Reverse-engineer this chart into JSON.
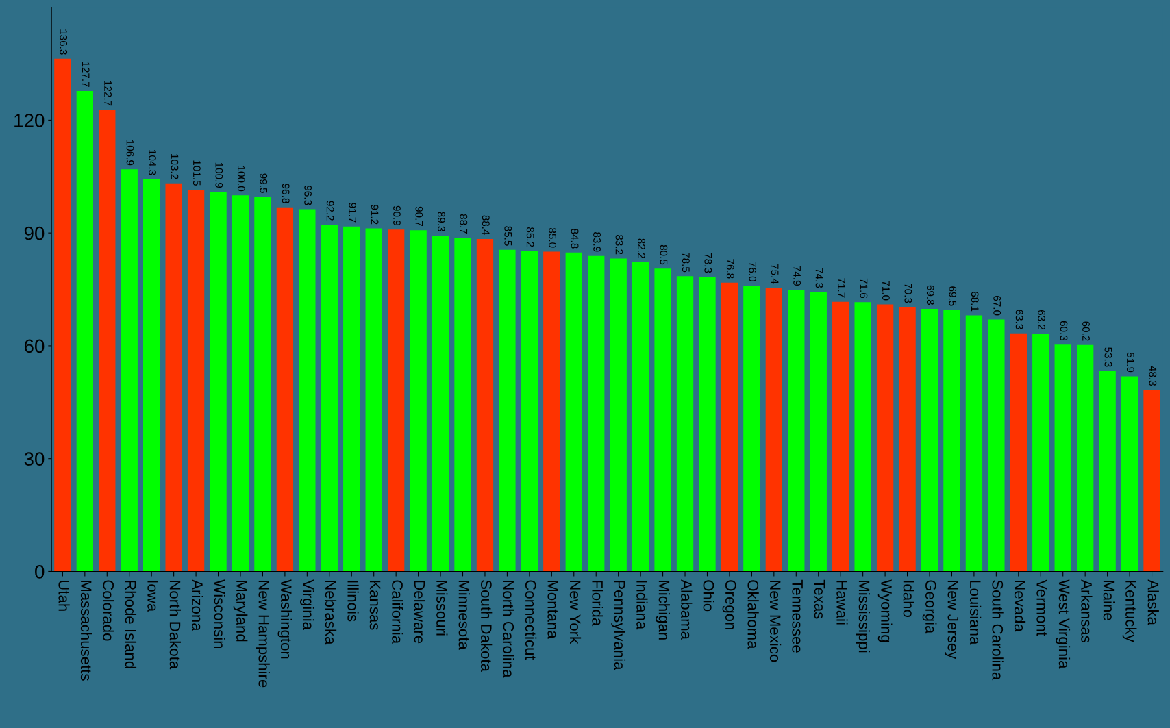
{
  "chart_data": {
    "type": "bar",
    "categories": [
      "Utah",
      "Massachusetts",
      "Colorado",
      "Rhode Island",
      "Iowa",
      "North Dakota",
      "Arizona",
      "Wisconsin",
      "Maryland",
      "New Hampshire",
      "Washington",
      "Virginia",
      "Nebraska",
      "Illinois",
      "Kansas",
      "California",
      "Delaware",
      "Missouri",
      "Minnesota",
      "South Dakota",
      "North Carolina",
      "Connecticut",
      "Montana",
      "New York",
      "Florida",
      "Pennsylvania",
      "Indiana",
      "Michigan",
      "Alabama",
      "Ohio",
      "Oregon",
      "Oklahoma",
      "New Mexico",
      "Tennessee",
      "Texas",
      "Hawaii",
      "Mississippi",
      "Wyoming",
      "Idaho",
      "Georgia",
      "New Jersey",
      "Louisiana",
      "South Carolina",
      "Nevada",
      "Vermont",
      "West Virginia",
      "Arkansas",
      "Maine",
      "Kentucky",
      "Alaska"
    ],
    "values": [
      136.3,
      127.7,
      122.7,
      106.9,
      104.3,
      103.2,
      101.5,
      100.9,
      100.0,
      99.5,
      96.8,
      96.3,
      92.2,
      91.7,
      91.2,
      90.9,
      90.7,
      89.3,
      88.7,
      88.4,
      85.5,
      85.2,
      85.0,
      84.8,
      83.9,
      83.2,
      82.2,
      80.5,
      78.5,
      78.3,
      76.8,
      76.0,
      75.4,
      74.9,
      74.3,
      71.7,
      71.6,
      71.0,
      70.3,
      69.8,
      69.5,
      68.1,
      67.0,
      63.3,
      63.2,
      60.3,
      60.2,
      53.3,
      51.9,
      48.3
    ],
    "value_labels": [
      "136.3",
      "127.7",
      "122.7",
      "106.9",
      "104.3",
      "103.2",
      "101.5",
      "100.9",
      "100.0",
      "99.5",
      "96.8",
      "96.3",
      "92.2",
      "91.7",
      "91.2",
      "90.9",
      "90.7",
      "89.3",
      "88.7",
      "88.4",
      "85.5",
      "85.2",
      "85.0",
      "84.8",
      "83.9",
      "83.2",
      "82.2",
      "80.5",
      "78.5",
      "78.3",
      "76.8",
      "76.0",
      "75.4",
      "74.9",
      "74.3",
      "71.7",
      "71.6",
      "71.0",
      "70.3",
      "69.8",
      "69.5",
      "68.1",
      "67.0",
      "63.3",
      "63.2",
      "60.3",
      "60.2",
      "53.3",
      "51.9",
      "48.3"
    ],
    "colors": [
      "#ff3300",
      "#00ff00",
      "#ff3300",
      "#00ff00",
      "#00ff00",
      "#ff3300",
      "#ff3300",
      "#00ff00",
      "#00ff00",
      "#00ff00",
      "#ff3300",
      "#00ff00",
      "#00ff00",
      "#00ff00",
      "#00ff00",
      "#ff3300",
      "#00ff00",
      "#00ff00",
      "#00ff00",
      "#ff3300",
      "#00ff00",
      "#00ff00",
      "#ff3300",
      "#00ff00",
      "#00ff00",
      "#00ff00",
      "#00ff00",
      "#00ff00",
      "#00ff00",
      "#00ff00",
      "#ff3300",
      "#00ff00",
      "#ff3300",
      "#00ff00",
      "#00ff00",
      "#ff3300",
      "#00ff00",
      "#ff3300",
      "#ff3300",
      "#00ff00",
      "#00ff00",
      "#00ff00",
      "#00ff00",
      "#ff3300",
      "#00ff00",
      "#00ff00",
      "#00ff00",
      "#00ff00",
      "#00ff00",
      "#ff3300"
    ],
    "ylim": [
      0,
      150
    ],
    "yticks": [
      0,
      30,
      60,
      90,
      120
    ],
    "grid": false
  }
}
